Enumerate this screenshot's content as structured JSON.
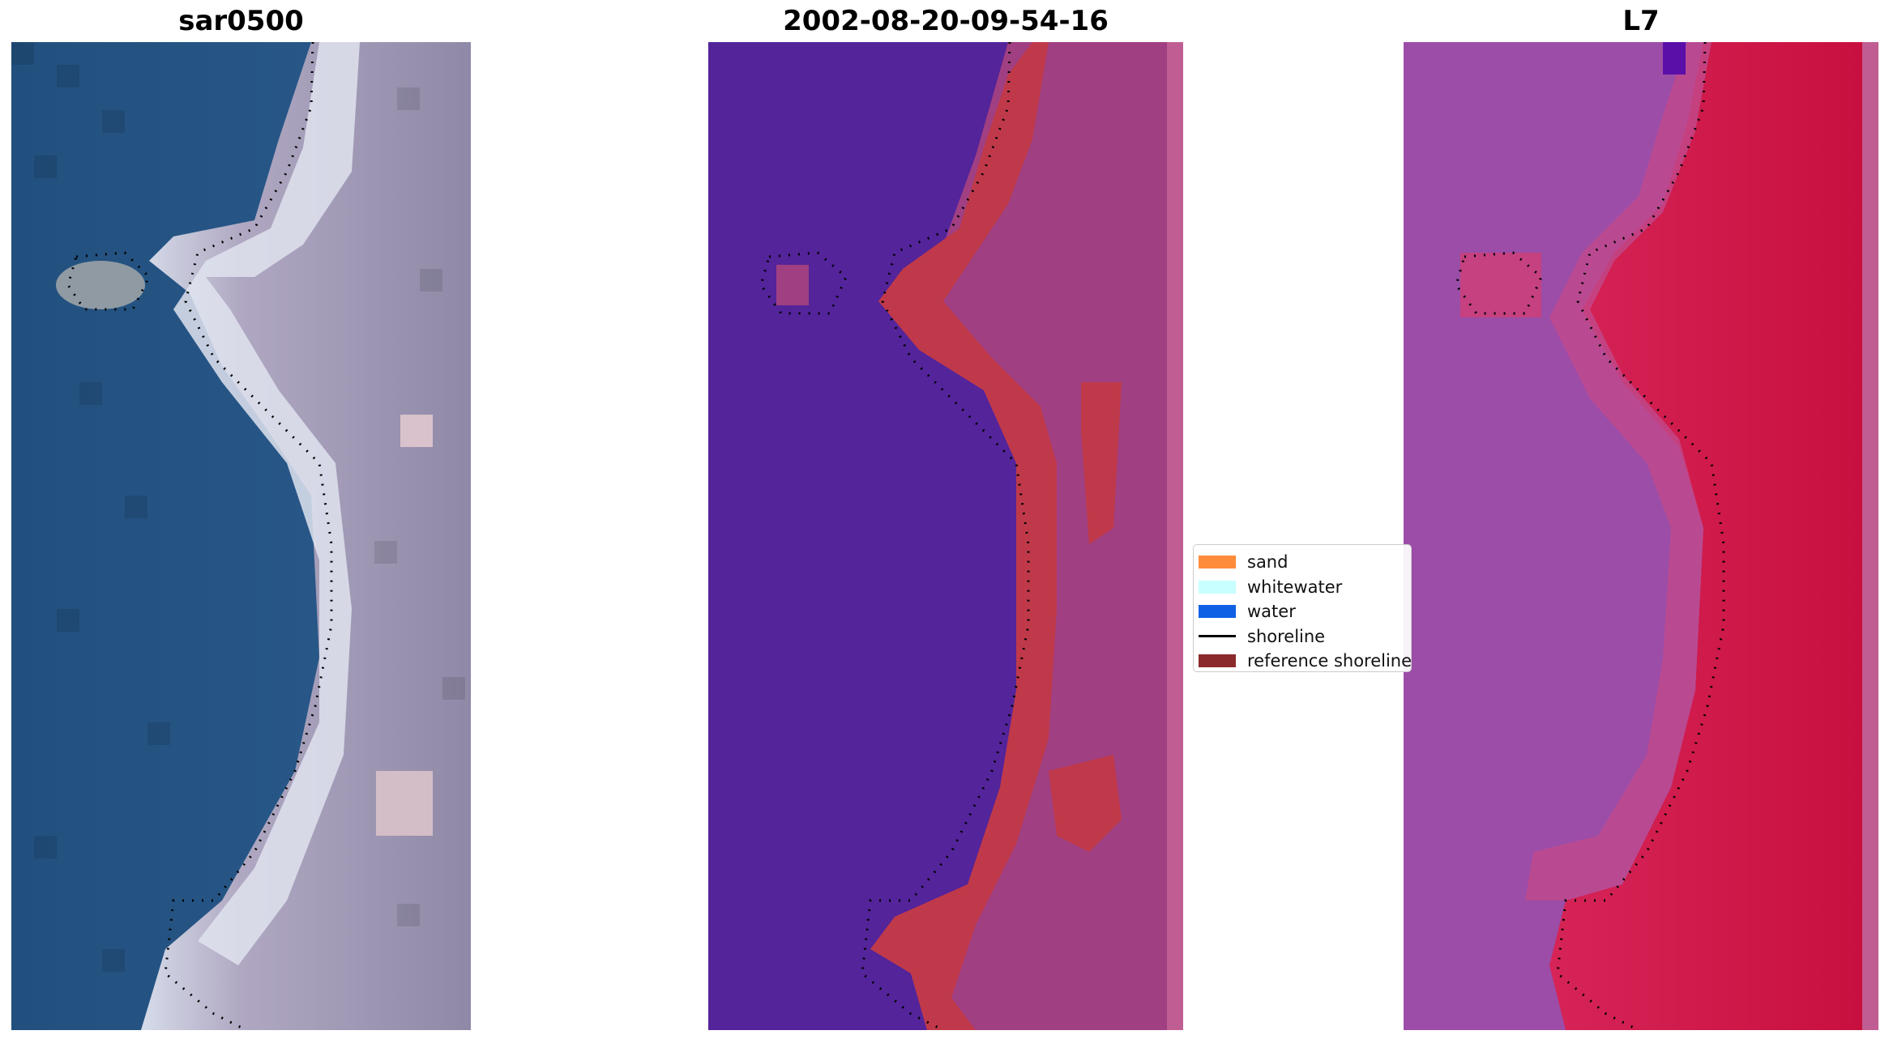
{
  "panels": {
    "rgb": {
      "title": "sar0500"
    },
    "classified": {
      "title": "2002-08-20-09-54-16"
    },
    "index": {
      "title": "L7"
    }
  },
  "legend": {
    "items": [
      {
        "label": "sand",
        "type": "patch",
        "color": "#ff8c3a"
      },
      {
        "label": "whitewater",
        "type": "patch",
        "color": "#c8ffff"
      },
      {
        "label": "water",
        "type": "patch",
        "color": "#1060e6"
      },
      {
        "label": "shoreline",
        "type": "line",
        "color": "#000000"
      },
      {
        "label": "reference shoreline",
        "type": "patch",
        "color": "#8b2a2a"
      }
    ]
  },
  "colors": {
    "water_class": "#53249a",
    "sand_class": "#c0394a",
    "land_class": "#9e3d7e",
    "index_land": "#c8103f",
    "index_water": "#9b4da8"
  }
}
